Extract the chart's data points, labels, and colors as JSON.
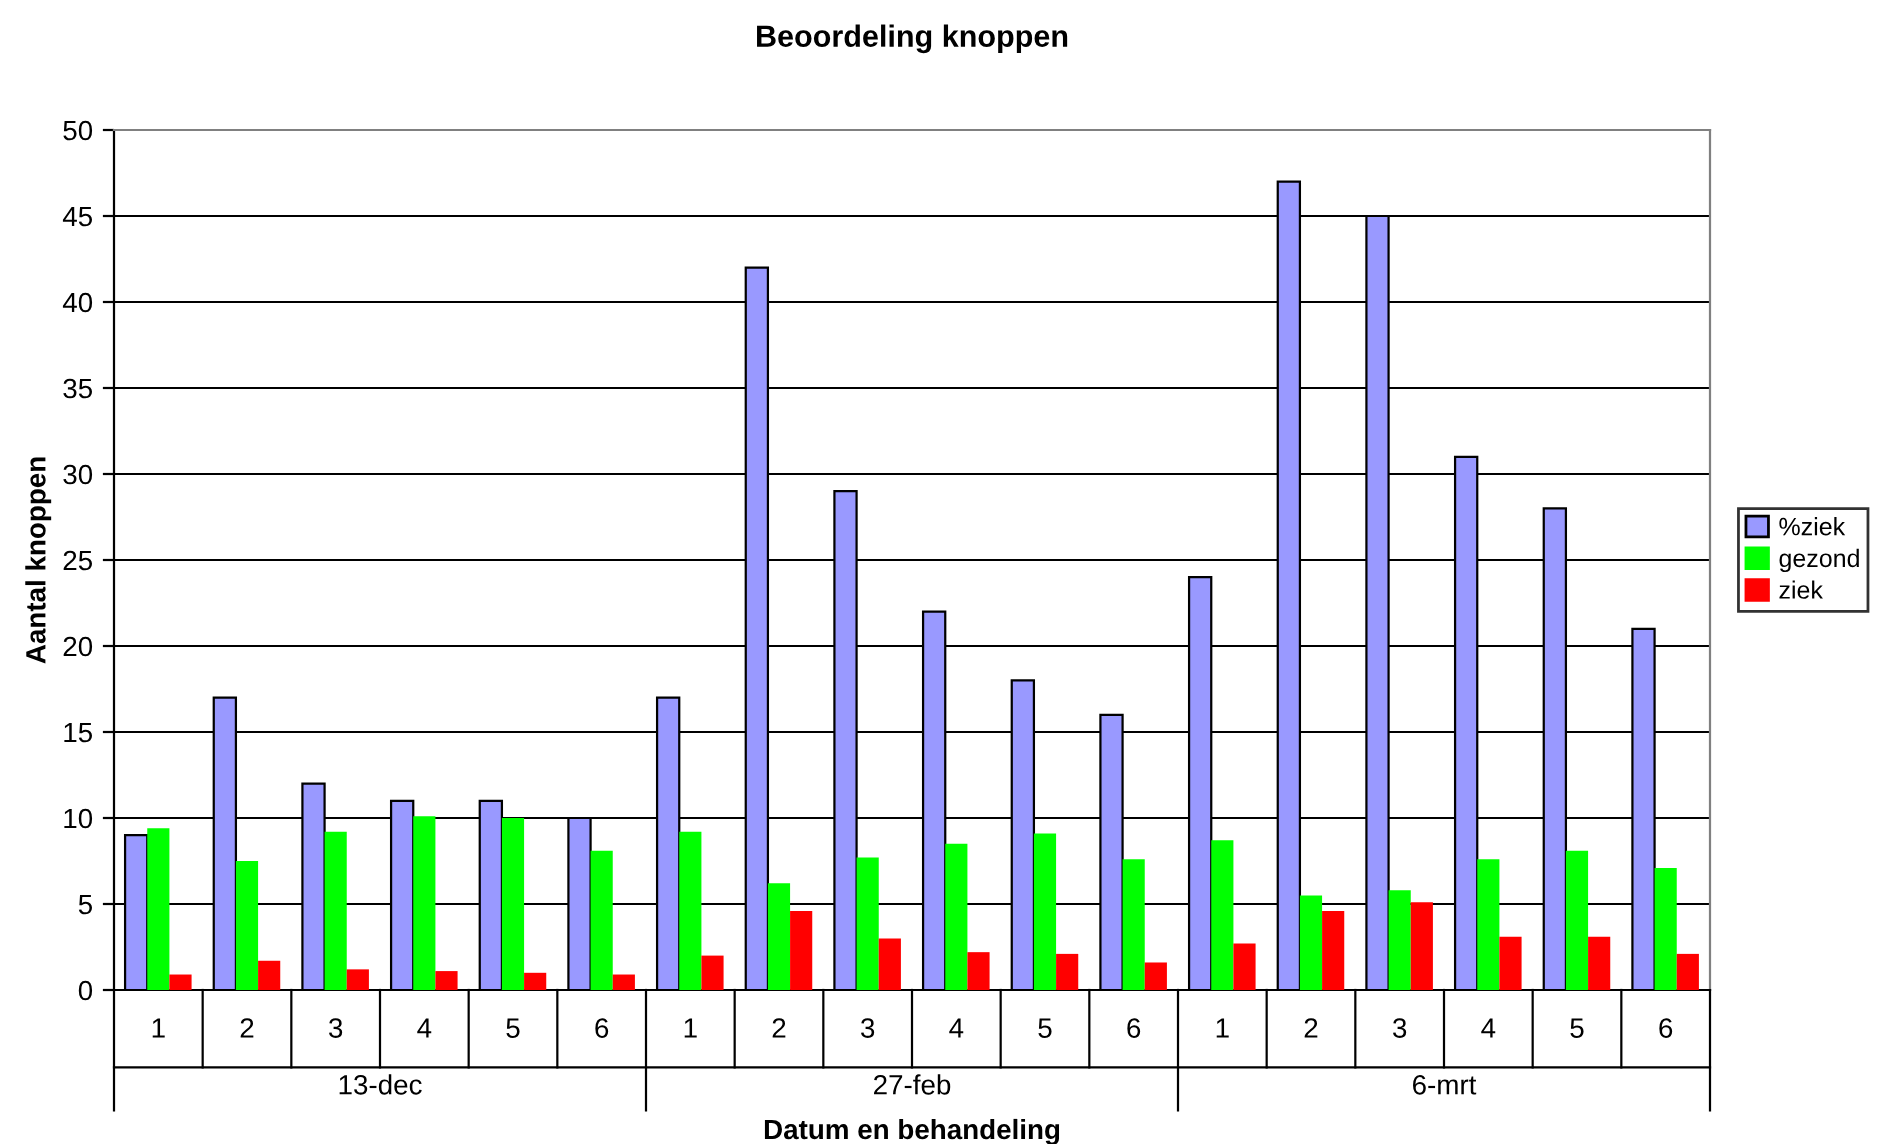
{
  "chart_data": {
    "type": "bar",
    "title": "Beoordeling knoppen",
    "xlabel": "Datum en behandeling",
    "ylabel": "Aantal knoppen",
    "categories": [
      "1",
      "2",
      "3",
      "4",
      "5",
      "6",
      "1",
      "2",
      "3",
      "4",
      "5",
      "6",
      "1",
      "2",
      "3",
      "4",
      "5",
      "6"
    ],
    "annotations": [
      "13-dec",
      "27-feb",
      "6-mrt"
    ],
    "series": [
      {
        "name": "%ziek",
        "color": "#9999ff",
        "values": [
          9,
          17,
          12,
          11,
          11,
          10,
          17,
          42,
          29,
          22,
          18,
          16,
          24,
          47,
          45,
          31,
          28,
          21
        ]
      },
      {
        "name": "gezond",
        "color": "#00ff00",
        "values": [
          9.4,
          7.5,
          9.2,
          10.1,
          10.0,
          8.1,
          9.2,
          6.2,
          7.7,
          8.5,
          9.1,
          7.6,
          8.7,
          5.5,
          5.8,
          7.6,
          8.1,
          7.1
        ]
      },
      {
        "name": "ziek",
        "color": "#ff0000",
        "values": [
          0.9,
          1.7,
          1.2,
          1.1,
          1.0,
          0.9,
          2.0,
          4.6,
          3.0,
          2.2,
          2.1,
          1.6,
          2.7,
          4.6,
          5.1,
          3.1,
          3.1,
          2.1
        ]
      }
    ],
    "ylim": [
      0,
      50
    ],
    "yticks": [
      0,
      5,
      10,
      15,
      20,
      25,
      30,
      35,
      40,
      45,
      50
    ],
    "grid": "y",
    "legend": "right"
  }
}
